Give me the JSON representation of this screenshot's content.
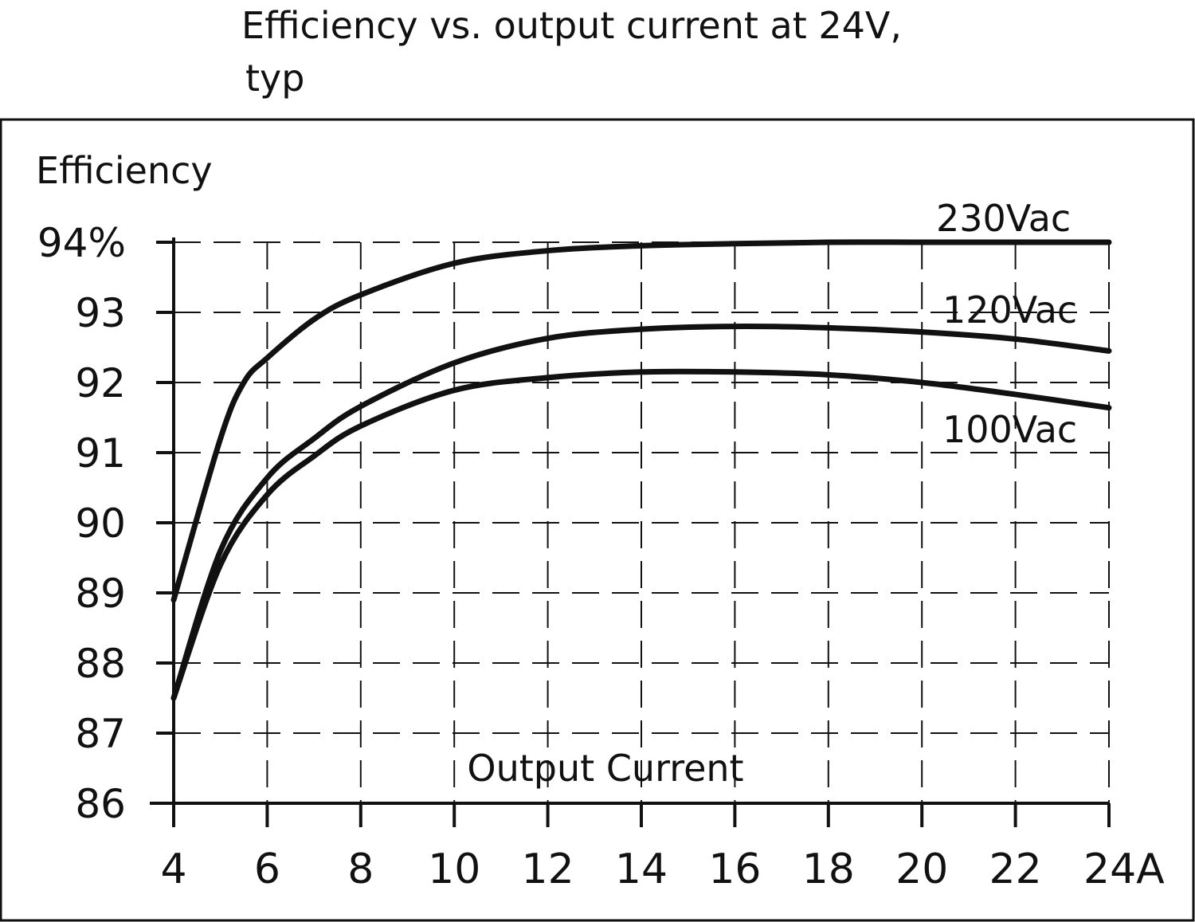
{
  "chart_data": {
    "type": "line",
    "title": "Efficiency vs. output current at 24V,",
    "subtitle": "typ",
    "xlabel": "Output Current",
    "ylabel": "Efficiency",
    "xlim": [
      4,
      24
    ],
    "ylim": [
      86,
      94
    ],
    "grid": true,
    "x_ticks": [
      4,
      6,
      8,
      10,
      12,
      14,
      16,
      18,
      20,
      22,
      24
    ],
    "x_tick_labels": [
      "4",
      "6",
      "8",
      "10",
      "12",
      "14",
      "16",
      "18",
      "20",
      "22",
      "24A"
    ],
    "y_ticks": [
      86,
      87,
      88,
      89,
      90,
      91,
      92,
      93,
      94
    ],
    "y_tick_labels": [
      "86",
      "87",
      "88",
      "89",
      "90",
      "91",
      "92",
      "93",
      "94%"
    ],
    "color": "#111111",
    "series": [
      {
        "name": "230Vac",
        "x": [
          4,
          5,
          5.5,
          6,
          7,
          8,
          10,
          12,
          14,
          16,
          18,
          20,
          22,
          24
        ],
        "values": [
          88.9,
          91.2,
          92.0,
          92.35,
          92.9,
          93.25,
          93.7,
          93.88,
          93.95,
          93.98,
          94.0,
          94.0,
          94.0,
          94.0
        ]
      },
      {
        "name": "120Vac",
        "x": [
          4,
          5,
          6,
          7,
          8,
          10,
          12,
          14,
          16,
          18,
          20,
          22,
          24
        ],
        "values": [
          87.5,
          89.6,
          90.64,
          91.2,
          91.66,
          92.28,
          92.63,
          92.76,
          92.8,
          92.78,
          92.72,
          92.62,
          92.45
        ]
      },
      {
        "name": "100Vac",
        "x": [
          4,
          5,
          6,
          7,
          8,
          10,
          12,
          14,
          16,
          18,
          20,
          22,
          24
        ],
        "values": [
          87.5,
          89.4,
          90.4,
          90.95,
          91.38,
          91.89,
          92.07,
          92.15,
          92.15,
          92.11,
          92.0,
          91.83,
          91.64
        ]
      }
    ]
  }
}
